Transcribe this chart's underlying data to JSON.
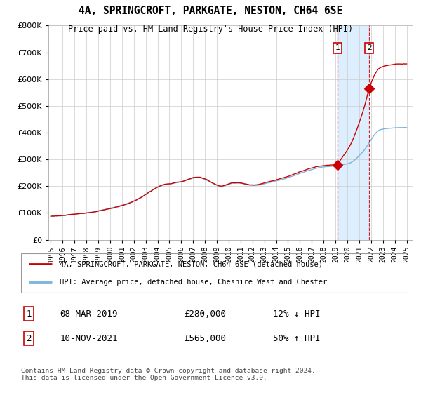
{
  "title": "4A, SPRINGCROFT, PARKGATE, NESTON, CH64 6SE",
  "subtitle": "Price paid vs. HM Land Registry's House Price Index (HPI)",
  "legend_line1": "4A, SPRINGCROFT, PARKGATE, NESTON, CH64 6SE (detached house)",
  "legend_line2": "HPI: Average price, detached house, Cheshire West and Chester",
  "footer": "Contains HM Land Registry data © Crown copyright and database right 2024.\nThis data is licensed under the Open Government Licence v3.0.",
  "sale1_label": "1",
  "sale1_date": "08-MAR-2019",
  "sale1_price": "£280,000",
  "sale1_hpi": "12% ↓ HPI",
  "sale1_year": 2019.18,
  "sale1_value": 280000,
  "sale2_label": "2",
  "sale2_date": "10-NOV-2021",
  "sale2_price": "£565,000",
  "sale2_hpi": "50% ↑ HPI",
  "sale2_year": 2021.85,
  "sale2_value": 565000,
  "hpi_color": "#7ab4dc",
  "price_color": "#cc0000",
  "marker_border_color": "#cc0000",
  "shade_color": "#ddeeff",
  "grid_color": "#cccccc",
  "ylim": [
    0,
    800000
  ],
  "xlim_start": 1994.8,
  "xlim_end": 2025.5,
  "background_color": "#ffffff"
}
